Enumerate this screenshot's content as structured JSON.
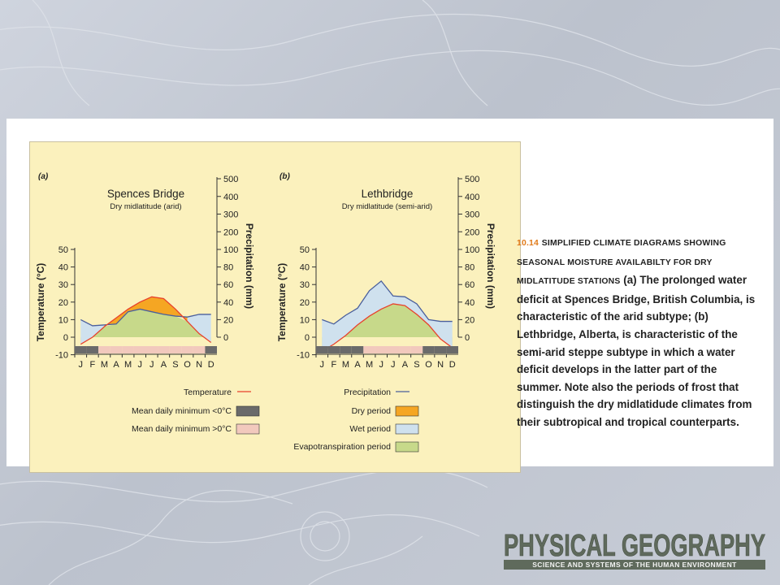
{
  "chart_data": [
    {
      "panel": "(a)",
      "type": "line",
      "title": "Spences Bridge",
      "subtitle": "Dry midlatitude (arid)",
      "categories": [
        "J",
        "F",
        "M",
        "A",
        "M",
        "J",
        "J",
        "A",
        "S",
        "O",
        "N",
        "D"
      ],
      "ylabel": "Temperature (°C)",
      "y2label": "Precipitation (mm)",
      "ylim": [
        -10,
        50
      ],
      "y2lim": [
        0,
        500
      ],
      "temperature_ticks": [
        "50",
        "40",
        "30",
        "20",
        "10",
        "0",
        "-10"
      ],
      "precipitation_ticks": [
        "500",
        "400",
        "300",
        "200",
        "100",
        "80",
        "60",
        "40",
        "20",
        "0"
      ],
      "series": [
        {
          "name": "Temperature",
          "values": [
            -4,
            0,
            6,
            11,
            16,
            20,
            23,
            22,
            16,
            9,
            2,
            -3
          ]
        },
        {
          "name": "Precipitation",
          "values": [
            20,
            13,
            14,
            15,
            29,
            32,
            29,
            26,
            24,
            23,
            26,
            26
          ]
        }
      ],
      "frost_bar": [
        "<0",
        "<0",
        ">0",
        ">0",
        ">0",
        ">0",
        ">0",
        ">0",
        ">0",
        ">0",
        ">0",
        "<0"
      ]
    },
    {
      "panel": "(b)",
      "type": "line",
      "title": "Lethbridge",
      "subtitle": "Dry midlatitude (semi-arid)",
      "categories": [
        "J",
        "F",
        "M",
        "A",
        "M",
        "J",
        "J",
        "A",
        "S",
        "O",
        "N",
        "D"
      ],
      "ylabel": "Temperature (°C)",
      "y2label": "Precipitation (mm)",
      "ylim": [
        -10,
        50
      ],
      "y2lim": [
        0,
        500
      ],
      "temperature_ticks": [
        "50",
        "40",
        "30",
        "20",
        "10",
        "0",
        "-10"
      ],
      "precipitation_ticks": [
        "500",
        "400",
        "300",
        "200",
        "100",
        "80",
        "60",
        "40",
        "20",
        "0"
      ],
      "series": [
        {
          "name": "Temperature",
          "values": [
            -8,
            -4,
            1,
            7,
            12,
            16,
            19,
            18,
            13,
            7,
            -1,
            -6
          ]
        },
        {
          "name": "Precipitation",
          "values": [
            20,
            15,
            25,
            33,
            53,
            64,
            47,
            46,
            38,
            20,
            18,
            18
          ]
        }
      ],
      "frost_bar": [
        "<0",
        "<0",
        "<0",
        "<0",
        ">0",
        ">0",
        ">0",
        ">0",
        ">0",
        "<0",
        "<0",
        "<0"
      ]
    }
  ],
  "legend": {
    "temperature": "Temperature",
    "precipitation": "Precipitation",
    "min_below": "Mean daily minimum <0°C",
    "min_above": "Mean daily minimum >0°C",
    "dry": "Dry period",
    "wet": "Wet period",
    "evap": "Evapotranspiration period"
  },
  "colors": {
    "panel_bg": "#fbf1bd",
    "temperature_line": "#e8412c",
    "precipitation_line": "#4a5f9c",
    "dry_fill": "#f5a623",
    "wet_fill": "#cfe1ee",
    "evap_fill": "#c7d98a",
    "frost_dark": "#6a6a6a",
    "frost_light": "#f2c9bd"
  },
  "caption": {
    "fig_num": "10.14",
    "heading": "SIMPLIFIED CLIMATE DIAGRAMS SHOWING SEASONAL MOISTURE AVAILABILTY FOR DRY MIDLATITUDE STATIONS",
    "body": "(a) The prolonged water deficit at Spences Bridge, British Columbia, is characteristic of the arid subtype; (b) Lethbridge, Alberta, is characteristic of the semi-arid steppe subtype in which a water deficit develops in the latter part of the summer. Note also the periods of frost that distinguish the dry midlatidude climates from their subtropical and tropical counterparts."
  },
  "logo": {
    "title": "PHYSICAL GEOGRAPHY",
    "subtitle": "SCIENCE AND SYSTEMS OF THE HUMAN ENVIRONMENT"
  }
}
